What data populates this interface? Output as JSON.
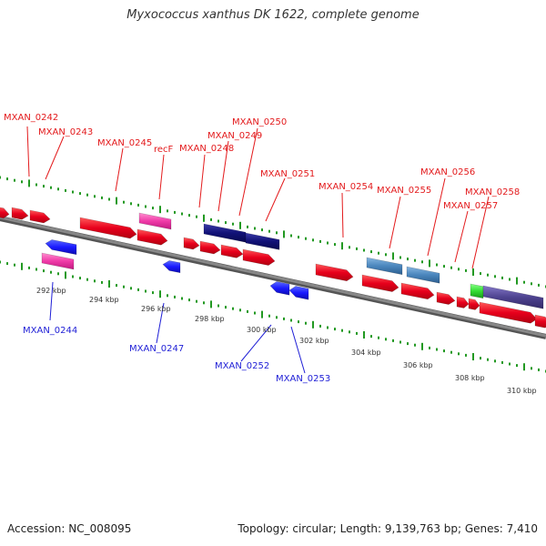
{
  "title": "Myxococcus xanthus DK 1622, complete genome",
  "footer": {
    "accession": "Accession: NC_008095",
    "summary": "Topology: circular; Length: 9,139,763 bp; Genes: 7,410"
  },
  "colors": {
    "forward_gene": "#e8001c",
    "reverse_gene": "#1a1aff",
    "pink_gene": "#f03aa8",
    "navy_gene": "#111177",
    "steel_gene": "#4a86bd",
    "purple_gene": "#4e4390",
    "green_gene": "#33dd33",
    "tick": "#229922",
    "backbone": "#888888"
  },
  "scale_labels": [
    "292 kbp",
    "294 kbp",
    "296 kbp",
    "298 kbp",
    "300 kbp",
    "302 kbp",
    "304 kbp",
    "306 kbp",
    "308 kbp",
    "310 kbp"
  ],
  "forward_labels": [
    "MXAN_0242",
    "MXAN_0243",
    "MXAN_0245",
    "recF",
    "MXAN_0248",
    "MXAN_0249",
    "MXAN_0250",
    "MXAN_0251",
    "MXAN_0254",
    "MXAN_0255",
    "MXAN_0256",
    "MXAN_0257",
    "MXAN_0258"
  ],
  "reverse_labels": [
    "MXAN_0244",
    "MXAN_0247",
    "MXAN_0252",
    "MXAN_0253"
  ]
}
